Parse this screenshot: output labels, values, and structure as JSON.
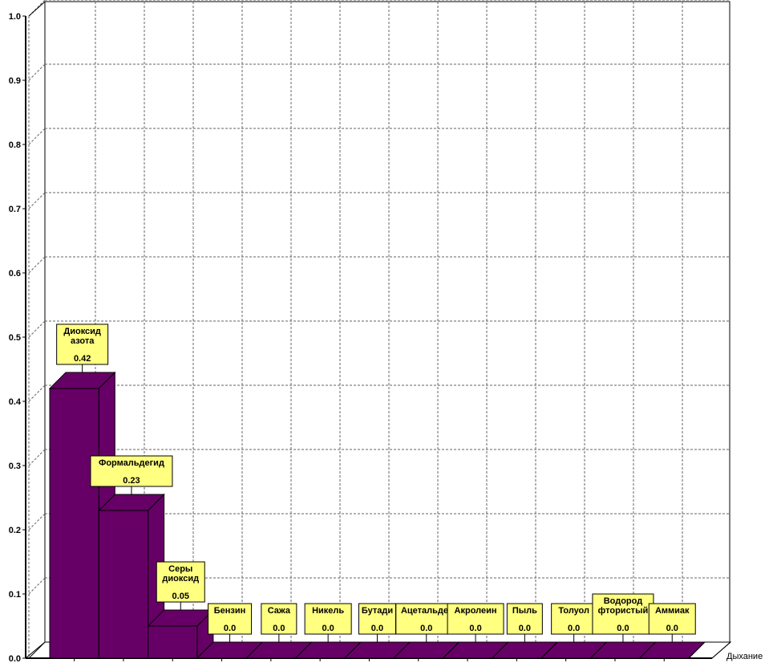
{
  "chart_data": {
    "type": "bar",
    "style": "3d",
    "series_label": "Дыхание",
    "categories": [
      [
        "Диоксид",
        "азота"
      ],
      [
        "Формальдегид"
      ],
      [
        "Серы",
        "диоксид"
      ],
      [
        "Бензин"
      ],
      [
        "Сажа"
      ],
      [
        "Никель"
      ],
      [
        "Бутади"
      ],
      [
        "Ацетальдег"
      ],
      [
        "Акролеин"
      ],
      [
        "Пыль"
      ],
      [
        "Толуол"
      ],
      [
        "Водород",
        "фтористый"
      ],
      [
        "Аммиак"
      ]
    ],
    "values": [
      0.42,
      0.23,
      0.05,
      0.0,
      0.0,
      0.0,
      0.0,
      0.0,
      0.0,
      0.0,
      0.0,
      0.0,
      0.0
    ],
    "value_labels": [
      "0.42",
      "0.23",
      "0.05",
      "0.0",
      "0.0",
      "0.0",
      "0.0",
      "0.0",
      "0.0",
      "0.0",
      "0.0",
      "0.0",
      "0.0"
    ],
    "ylim": [
      0,
      1.0
    ],
    "yticks": [
      "0.0",
      "0.1",
      "0.2",
      "0.3",
      "0.4",
      "0.5",
      "0.6",
      "0.7",
      "0.8",
      "0.9",
      "1.0"
    ],
    "grid": true,
    "colors": {
      "bar_front": "#660066",
      "bar_top": "#660066",
      "bar_side": "#660066",
      "label_bg": "#ffff80",
      "grid": "#666666"
    }
  }
}
